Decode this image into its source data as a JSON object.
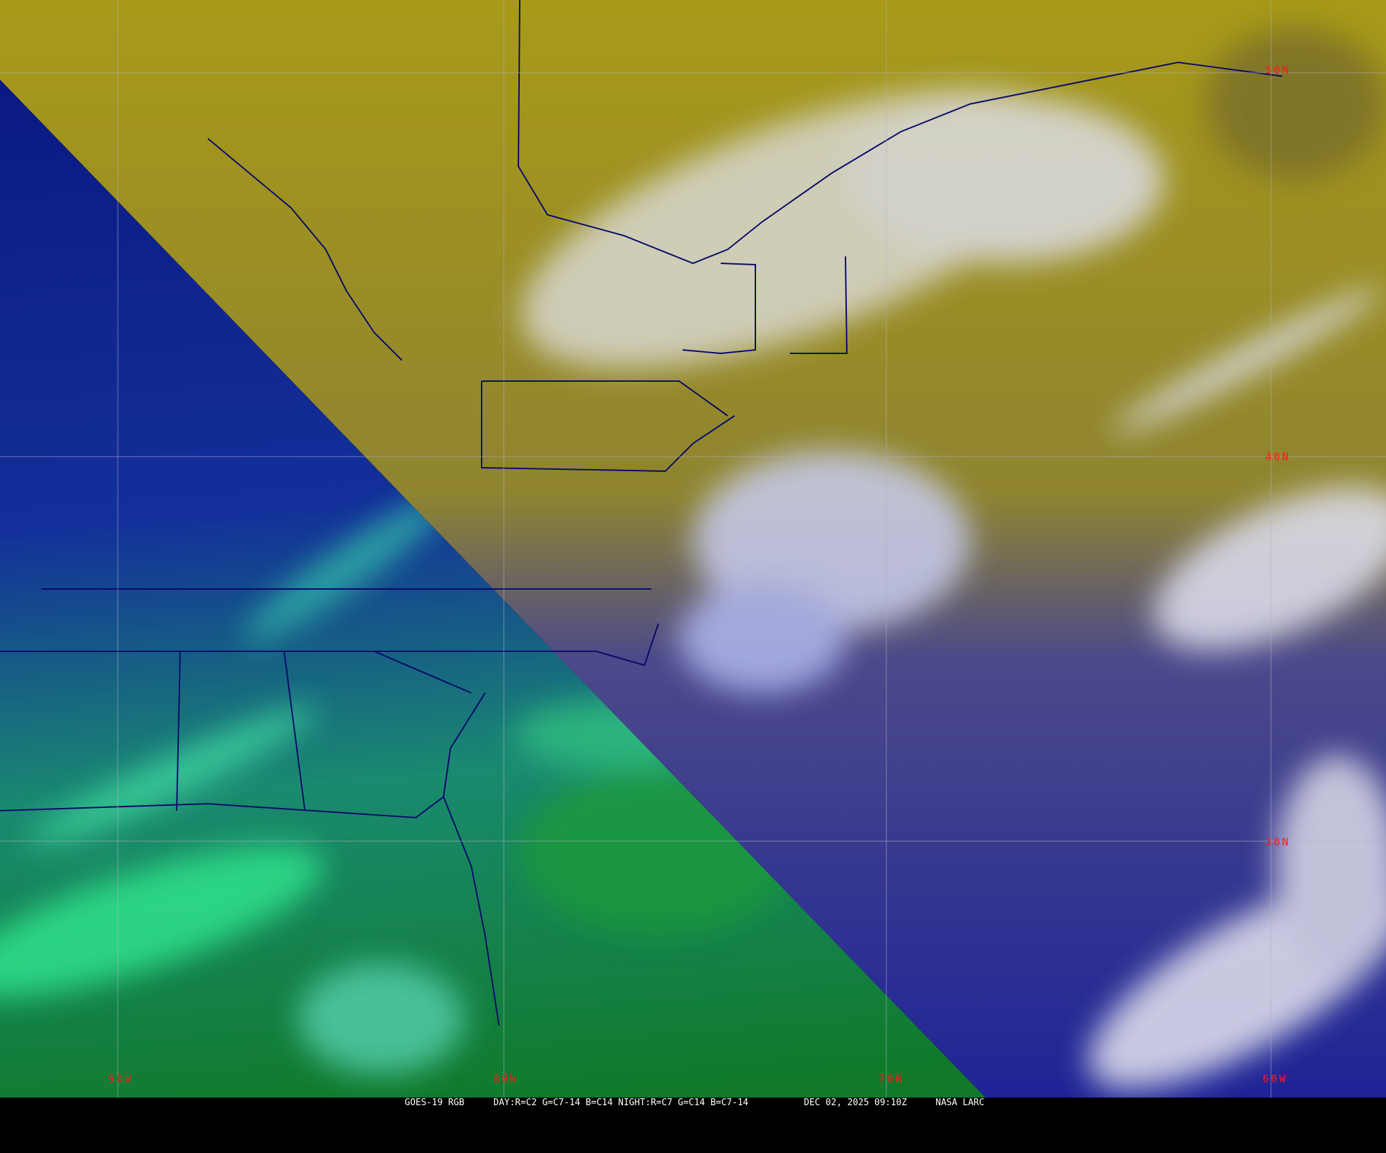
{
  "image": {
    "satellite": "GOES-19 RGB",
    "recipe": "DAY:R=C2 G=C7-14 B=C14 NIGHT:R=C7 G=C14 B=C7-14",
    "timestamp": "DEC 02, 2025 09:10Z",
    "credit": "NASA LARC"
  },
  "grid": {
    "latitude_labels": [
      "50N",
      "40N",
      "30N"
    ],
    "longitude_labels": [
      "90W",
      "80W",
      "70W",
      "60W"
    ],
    "label_color": "#ff1a1a",
    "grid_color": "#b0b0c0"
  },
  "colors": {
    "day_yellow": "#a89a18",
    "night_blue": "#0b1a7a",
    "night_green": "#1fc85a",
    "cloud_white": "#e6e8f2",
    "ocean_blue": "#26289a",
    "border": "#0a0a6a"
  }
}
